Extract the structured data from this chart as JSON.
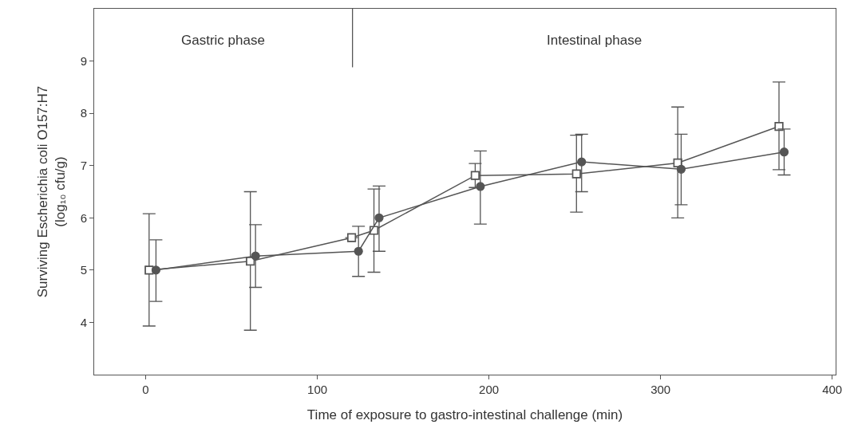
{
  "chart_data": {
    "type": "line",
    "xlabel": "Time of exposure to gastro-intestinal challenge (min)",
    "ylabel": "Surviving Escherichia coli O157:H7\n(log₁₀ cfu/g)",
    "xlim": [
      -30,
      402
    ],
    "xticks": [
      0,
      100,
      200,
      300,
      400
    ],
    "ylim": [
      3,
      10
    ],
    "yticks": [
      4,
      5,
      6,
      7,
      8,
      9
    ],
    "series": [
      {
        "color": "#555555",
        "marker": "square",
        "x": [
          2,
          61,
          120,
          133,
          192,
          251,
          310,
          369
        ],
        "values": [
          5.0,
          5.17,
          5.62,
          5.76,
          6.81,
          6.84,
          7.05,
          7.75
        ],
        "errors": [
          [
            3.93,
            6.08
          ],
          [
            3.85,
            6.5
          ],
          null,
          [
            4.96,
            6.55
          ],
          [
            6.58,
            7.04
          ],
          [
            6.11,
            7.58
          ],
          [
            6.0,
            8.12
          ],
          [
            6.92,
            8.6
          ]
        ]
      },
      {
        "color": "#555555",
        "marker": "circle",
        "x": [
          6,
          64,
          124,
          136,
          195,
          254,
          312,
          372
        ],
        "values": [
          5.0,
          5.27,
          5.36,
          6.0,
          6.6,
          7.07,
          6.93,
          7.26
        ],
        "errors": [
          [
            4.4,
            5.58
          ],
          [
            4.67,
            5.87
          ],
          [
            4.88,
            5.84
          ],
          [
            5.36,
            6.61
          ],
          [
            5.88,
            7.28
          ],
          [
            6.5,
            7.6
          ],
          [
            6.25,
            7.6
          ],
          [
            6.82,
            7.7
          ]
        ]
      }
    ],
    "ref_lines": [
      {
        "axis": "x",
        "value": 120.5,
        "color": "#555555"
      }
    ],
    "annotations": [
      "Gastric phase",
      "Intestinal phase"
    ]
  }
}
